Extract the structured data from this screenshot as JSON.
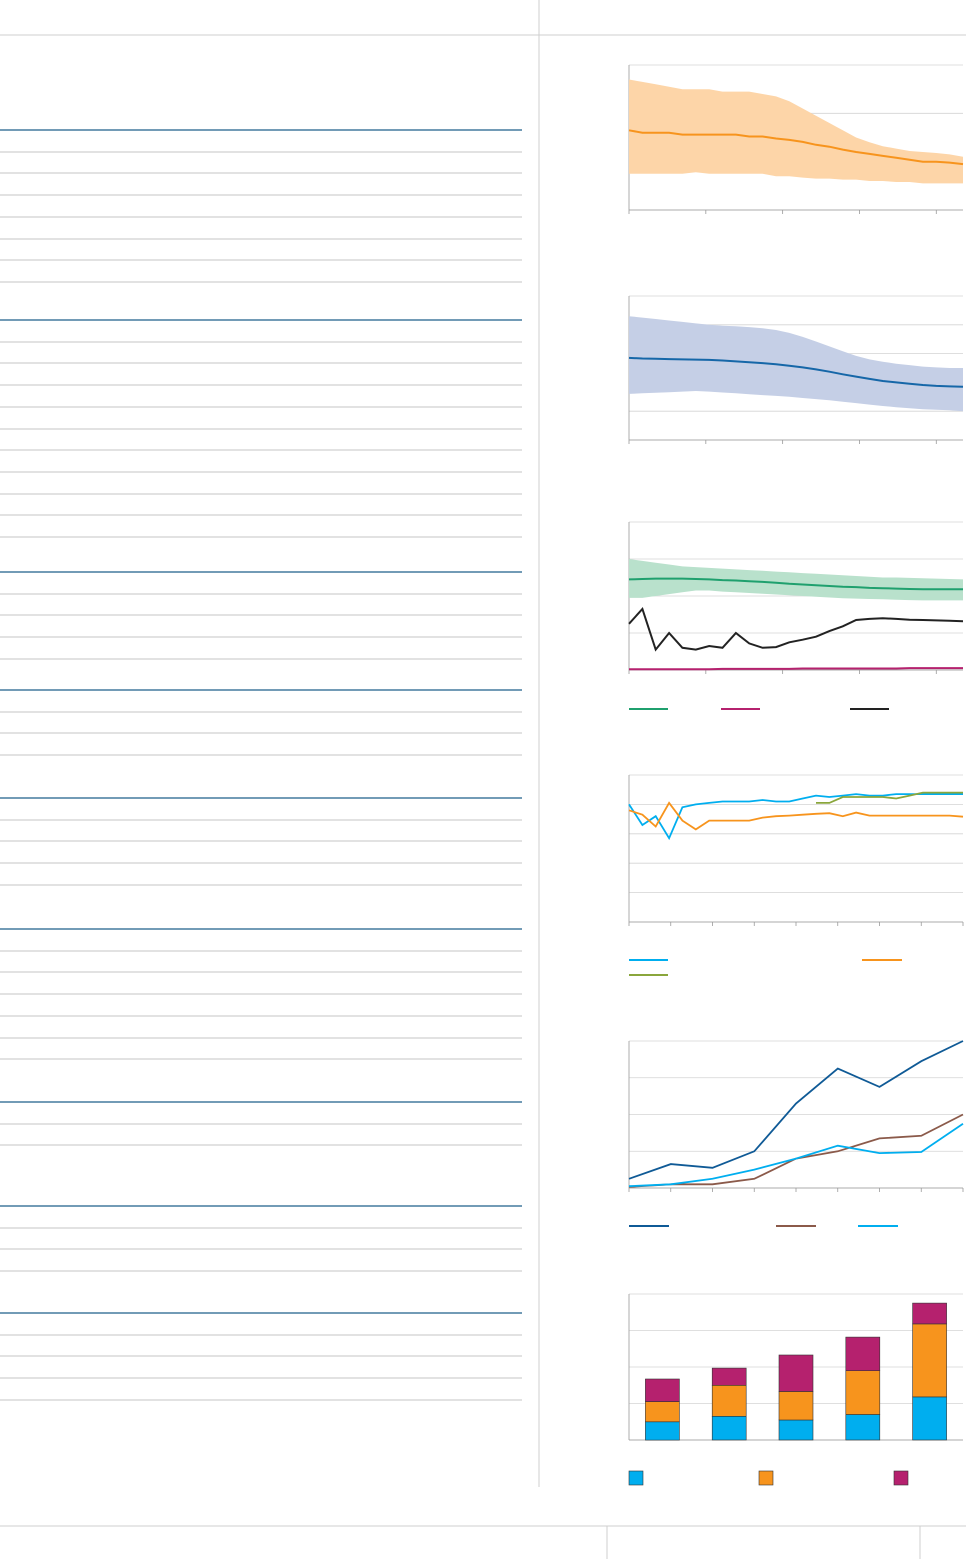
{
  "colors": {
    "rule_blue": "#1f5f8b",
    "rule_grey": "#b3b3b3",
    "orange": "#f7941d",
    "orange_band": "#fdd5a8",
    "navy": "#1667a8",
    "navy_band": "#c5cfe6",
    "green": "#1fa06e",
    "green_band": "#b9e1cc",
    "magenta": "#b5216e",
    "black": "#222222",
    "light_blue": "#00aeef",
    "olive": "#8aa63c",
    "dark_blue": "#0f5a96",
    "brown": "#8b5a4a",
    "seg_blue": "#00aeef",
    "seg_orange": "#f7941d",
    "seg_magenta": "#b5216e"
  },
  "table_groups": [
    {
      "rows": 7
    },
    {
      "rows": 10
    },
    {
      "rows": 4
    },
    {
      "rows": 3
    },
    {
      "rows": 4
    },
    {
      "rows": 6
    },
    {
      "rows": 2
    },
    {
      "rows": 3
    },
    {
      "rows": 4
    }
  ],
  "chart_data": [
    {
      "type": "area",
      "title": "",
      "xlabel": "",
      "ylabel": "",
      "ylim": [
        0,
        3
      ],
      "x": [
        0,
        1,
        2,
        3,
        4,
        5,
        6,
        7,
        8,
        9,
        10,
        11,
        12,
        13,
        14,
        15,
        16,
        17,
        18,
        19,
        20,
        21,
        22,
        23,
        24,
        25
      ],
      "series": [
        {
          "role": "median",
          "values": [
            1.65,
            1.6,
            1.6,
            1.6,
            1.56,
            1.56,
            1.56,
            1.56,
            1.56,
            1.52,
            1.52,
            1.48,
            1.45,
            1.41,
            1.35,
            1.31,
            1.25,
            1.2,
            1.16,
            1.12,
            1.08,
            1.04,
            1.0,
            1.0,
            0.98,
            0.95
          ]
        },
        {
          "role": "upper",
          "values": [
            2.7,
            2.65,
            2.6,
            2.55,
            2.5,
            2.5,
            2.5,
            2.45,
            2.45,
            2.45,
            2.4,
            2.35,
            2.25,
            2.1,
            1.95,
            1.8,
            1.65,
            1.5,
            1.4,
            1.32,
            1.27,
            1.22,
            1.2,
            1.18,
            1.15,
            1.1
          ]
        },
        {
          "role": "lower",
          "values": [
            0.75,
            0.75,
            0.75,
            0.75,
            0.75,
            0.78,
            0.75,
            0.75,
            0.75,
            0.75,
            0.75,
            0.7,
            0.7,
            0.67,
            0.65,
            0.65,
            0.63,
            0.63,
            0.6,
            0.6,
            0.58,
            0.58,
            0.55,
            0.55,
            0.55,
            0.55
          ]
        }
      ]
    },
    {
      "type": "area",
      "title": "",
      "xlabel": "",
      "ylabel": "",
      "ylim": [
        0,
        5
      ],
      "x": [
        0,
        1,
        2,
        3,
        4,
        5,
        6,
        7,
        8,
        9,
        10,
        11,
        12,
        13,
        14,
        15,
        16,
        17,
        18,
        19,
        20,
        21,
        22,
        23,
        24,
        25
      ],
      "series": [
        {
          "role": "median",
          "values": [
            2.85,
            2.83,
            2.82,
            2.81,
            2.8,
            2.79,
            2.78,
            2.76,
            2.73,
            2.7,
            2.67,
            2.63,
            2.58,
            2.52,
            2.45,
            2.37,
            2.28,
            2.2,
            2.12,
            2.05,
            2.0,
            1.95,
            1.91,
            1.88,
            1.86,
            1.85
          ]
        },
        {
          "role": "upper",
          "values": [
            4.3,
            4.25,
            4.2,
            4.15,
            4.1,
            4.05,
            4.0,
            3.97,
            3.95,
            3.92,
            3.88,
            3.82,
            3.72,
            3.58,
            3.42,
            3.25,
            3.08,
            2.92,
            2.8,
            2.72,
            2.65,
            2.6,
            2.55,
            2.52,
            2.5,
            2.5
          ]
        },
        {
          "role": "lower",
          "values": [
            1.6,
            1.62,
            1.64,
            1.66,
            1.68,
            1.7,
            1.68,
            1.65,
            1.62,
            1.59,
            1.56,
            1.53,
            1.5,
            1.46,
            1.42,
            1.38,
            1.33,
            1.28,
            1.23,
            1.18,
            1.14,
            1.1,
            1.07,
            1.05,
            1.03,
            1.0
          ]
        }
      ]
    },
    {
      "type": "line",
      "title": "",
      "xlabel": "",
      "ylabel": "",
      "ylim": [
        0,
        4
      ],
      "x": [
        0,
        1,
        2,
        3,
        4,
        5,
        6,
        7,
        8,
        9,
        10,
        11,
        12,
        13,
        14,
        15,
        16,
        17,
        18,
        19,
        20,
        21,
        22,
        23,
        24,
        25
      ],
      "band": {
        "upper": [
          3.0,
          2.95,
          2.9,
          2.85,
          2.8,
          2.78,
          2.76,
          2.74,
          2.72,
          2.7,
          2.68,
          2.66,
          2.64,
          2.62,
          2.6,
          2.58,
          2.56,
          2.54,
          2.52,
          2.5,
          2.5,
          2.49,
          2.48,
          2.47,
          2.46,
          2.45
        ],
        "lower": [
          1.95,
          1.95,
          2.0,
          2.05,
          2.1,
          2.15,
          2.15,
          2.12,
          2.1,
          2.08,
          2.06,
          2.04,
          2.02,
          2.0,
          1.98,
          1.96,
          1.94,
          1.93,
          1.92,
          1.91,
          1.9,
          1.89,
          1.88,
          1.88,
          1.88,
          1.88
        ]
      },
      "series": [
        {
          "role": "green",
          "values": [
            2.45,
            2.46,
            2.47,
            2.47,
            2.47,
            2.46,
            2.45,
            2.43,
            2.42,
            2.4,
            2.38,
            2.36,
            2.33,
            2.31,
            2.29,
            2.27,
            2.25,
            2.24,
            2.22,
            2.21,
            2.2,
            2.19,
            2.18,
            2.18,
            2.18,
            2.18
          ]
        },
        {
          "role": "magenta",
          "values": [
            0.02,
            0.02,
            0.02,
            0.02,
            0.02,
            0.02,
            0.02,
            0.03,
            0.03,
            0.03,
            0.03,
            0.03,
            0.03,
            0.04,
            0.04,
            0.04,
            0.04,
            0.04,
            0.04,
            0.04,
            0.04,
            0.05,
            0.05,
            0.05,
            0.05,
            0.05
          ]
        },
        {
          "role": "black",
          "values": [
            1.25,
            1.65,
            0.55,
            1.0,
            0.6,
            0.55,
            0.65,
            0.6,
            1.0,
            0.72,
            0.6,
            0.62,
            0.75,
            0.82,
            0.9,
            1.05,
            1.18,
            1.35,
            1.38,
            1.4,
            1.38,
            1.36,
            1.35,
            1.34,
            1.33,
            1.32
          ]
        }
      ]
    },
    {
      "type": "line",
      "title": "",
      "xlabel": "",
      "ylabel": "",
      "ylim": [
        0,
        5
      ],
      "x": [
        0,
        1,
        2,
        3,
        4,
        5,
        6,
        7,
        8,
        9,
        10,
        11,
        12,
        13,
        14,
        15,
        16,
        17,
        18,
        19,
        20,
        21,
        22,
        23,
        24,
        25
      ],
      "series": [
        {
          "role": "light-blue",
          "values": [
            4.0,
            3.3,
            3.6,
            2.85,
            3.9,
            4.0,
            4.05,
            4.1,
            4.1,
            4.1,
            4.15,
            4.1,
            4.1,
            4.2,
            4.3,
            4.25,
            4.3,
            4.35,
            4.3,
            4.3,
            4.35,
            4.35,
            4.35,
            4.35,
            4.35,
            4.35
          ]
        },
        {
          "role": "orange",
          "values": [
            3.8,
            3.65,
            3.25,
            4.05,
            3.45,
            3.15,
            3.45,
            3.45,
            3.45,
            3.45,
            3.55,
            3.6,
            3.62,
            3.65,
            3.68,
            3.7,
            3.6,
            3.72,
            3.62,
            3.62,
            3.62,
            3.62,
            3.62,
            3.62,
            3.62,
            3.58
          ]
        },
        {
          "role": "olive",
          "values": [
            null,
            null,
            null,
            null,
            null,
            null,
            null,
            null,
            null,
            null,
            null,
            null,
            null,
            null,
            4.05,
            4.05,
            4.25,
            4.25,
            4.25,
            4.25,
            4.2,
            4.3,
            4.4,
            4.4,
            4.4,
            4.4
          ]
        }
      ]
    },
    {
      "type": "line",
      "title": "",
      "xlabel": "",
      "ylabel": "",
      "ylim": [
        0,
        4
      ],
      "x": [
        0,
        1,
        2,
        3,
        4,
        5,
        6,
        7,
        8
      ],
      "series": [
        {
          "role": "dark-blue",
          "values": [
            0.25,
            0.65,
            0.55,
            1.0,
            2.3,
            3.25,
            2.75,
            3.45,
            4.0
          ]
        },
        {
          "role": "brown",
          "values": [
            0.03,
            0.1,
            0.1,
            0.25,
            0.8,
            1.0,
            1.35,
            1.42,
            2.0
          ]
        },
        {
          "role": "light-blue",
          "values": [
            0.05,
            0.1,
            0.25,
            0.5,
            0.8,
            1.15,
            0.95,
            0.98,
            1.75
          ]
        }
      ]
    },
    {
      "type": "bar",
      "title": "",
      "xlabel": "",
      "ylabel": "",
      "ylim": [
        0,
        4
      ],
      "categories": [
        "",
        "",
        "",
        "",
        ""
      ],
      "stacked": true,
      "series": [
        {
          "role": "blue",
          "values": [
            0.5,
            0.65,
            0.55,
            0.7,
            1.18
          ]
        },
        {
          "role": "orange",
          "values": [
            0.55,
            0.85,
            0.78,
            1.2,
            2.0
          ]
        },
        {
          "role": "magenta",
          "values": [
            0.62,
            0.47,
            1.0,
            0.92,
            0.57
          ]
        }
      ]
    }
  ]
}
